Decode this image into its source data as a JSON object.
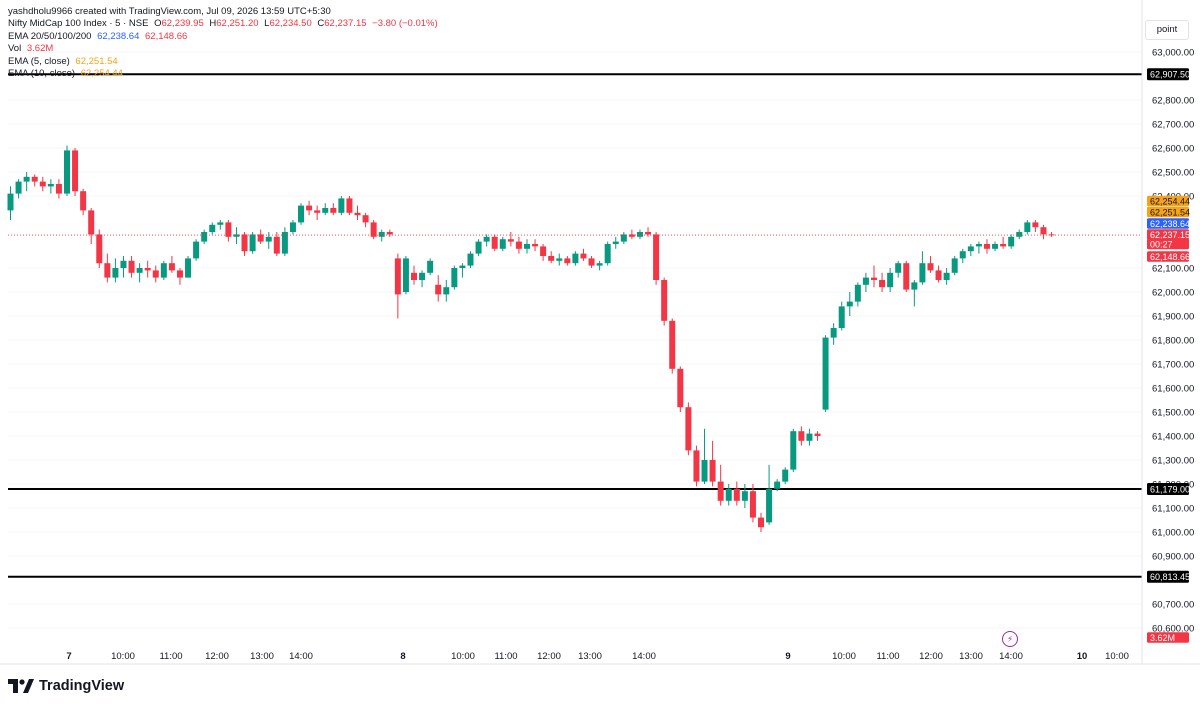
{
  "header": {
    "credit": "yashdholu9966 created with TradingView.com, Jul 09, 2026 13:59 UTC+5:30",
    "symbol": "Nifty MidCap 100 Index · 5 · NSE",
    "ohlc": {
      "o_label": "O",
      "o": "62,239.95",
      "h_label": "H",
      "h": "62,251.20",
      "l_label": "L",
      "l": "62,234.50",
      "c_label": "C",
      "c": "62,237.15",
      "chg": "−3.80 (−0.01%)"
    },
    "ema_multi": {
      "label": "EMA 20/50/100/200",
      "v1": "62,238.64",
      "v2": "62,148.66"
    },
    "vol": {
      "label": "Vol",
      "value": "3.62M"
    },
    "ema5": {
      "label": "EMA (5, close)",
      "value": "62,251.54"
    },
    "ema10": {
      "label": "EMA (10, close)",
      "value": "62,254.44"
    }
  },
  "scale_mode_button": "point",
  "colors": {
    "up": "#089981",
    "down": "#f23645",
    "ema5": "#f7a21b",
    "ema20": "#2962ff",
    "ema50": "#f23645",
    "hline": "#000000"
  },
  "price_axis": {
    "ticks": [
      "63,000.00",
      "62,800.00",
      "62,700.00",
      "62,600.00",
      "62,500.00",
      "62,400.00",
      "62,100.00",
      "62,000.00",
      "61,900.00",
      "61,800.00",
      "61,700.00",
      "61,600.00",
      "61,500.00",
      "61,400.00",
      "61,300.00",
      "61,200.00",
      "61,100.00",
      "61,000.00",
      "60,900.00",
      "60,700.00",
      "60,600.00"
    ],
    "labels": [
      {
        "text": "62,907.50",
        "kind": "hline"
      },
      {
        "text": "62,254.44",
        "kind": "ema10"
      },
      {
        "text": "62,251.54",
        "kind": "ema5"
      },
      {
        "text": "62,238.64",
        "kind": "ema20"
      },
      {
        "text": "62,237.15",
        "kind": "last"
      },
      {
        "text": "00:27",
        "kind": "countdown"
      },
      {
        "text": "62,148.66",
        "kind": "ema50"
      },
      {
        "text": "61,179.00",
        "kind": "hline"
      },
      {
        "text": "60,813.45",
        "kind": "hline"
      },
      {
        "text": "3.62M",
        "kind": "vol"
      }
    ]
  },
  "time_axis": {
    "labels": [
      {
        "t": 0,
        "text": "7",
        "bold": true
      },
      {
        "t": 7.5,
        "text": "10:00"
      },
      {
        "t": 12.7,
        "text": "11:00"
      },
      {
        "t": 18.1,
        "text": "12:00"
      },
      {
        "t": 23.3,
        "text": "13:00"
      },
      {
        "t": 28.3,
        "text": "14:00"
      },
      {
        "t": 41,
        "text": "8",
        "bold": true
      },
      {
        "t": 48.8,
        "text": "10:00"
      },
      {
        "t": 53.8,
        "text": "11:00"
      },
      {
        "t": 59.0,
        "text": "12:00"
      },
      {
        "t": 64.1,
        "text": "13:00"
      },
      {
        "t": 70.6,
        "text": "14:00"
      },
      {
        "t": 89.5,
        "text": "9",
        "bold": true
      },
      {
        "t": 96.1,
        "text": "10:00"
      },
      {
        "t": 101.2,
        "text": "11:00"
      },
      {
        "t": 106.4,
        "text": "12:00"
      },
      {
        "t": 111.5,
        "text": "13:00"
      },
      {
        "t": 116.4,
        "text": "14:00"
      },
      {
        "t": 124.5,
        "text": "10",
        "bold": true
      },
      {
        "t": 129.6,
        "text": "10:00"
      }
    ]
  },
  "chart_data": {
    "type": "candlestick",
    "symbol": "Nifty MidCap 100 Index",
    "interval": "5",
    "ylim": [
      60550,
      63100
    ],
    "horizontal_lines": [
      62907.5,
      61179.0,
      60813.45
    ],
    "last_price": 62237.15,
    "candles": [
      [
        62340,
        62440,
        62300,
        62410
      ],
      [
        62410,
        62470,
        62390,
        62460
      ],
      [
        62460,
        62500,
        62420,
        62480
      ],
      [
        62480,
        62490,
        62440,
        62460
      ],
      [
        62460,
        62480,
        62420,
        62440
      ],
      [
        62440,
        62470,
        62410,
        62450
      ],
      [
        62450,
        62470,
        62390,
        62410
      ],
      [
        62410,
        62610,
        62400,
        62590
      ],
      [
        62590,
        62600,
        62400,
        62420
      ],
      [
        62420,
        62430,
        62320,
        62340
      ],
      [
        62340,
        62350,
        62200,
        62240
      ],
      [
        62240,
        62260,
        62100,
        62120
      ],
      [
        62120,
        62160,
        62040,
        62060
      ],
      [
        62060,
        62140,
        62040,
        62100
      ],
      [
        62100,
        62150,
        62060,
        62130
      ],
      [
        62130,
        62150,
        62060,
        62080
      ],
      [
        62080,
        62120,
        62040,
        62100
      ],
      [
        62100,
        62130,
        62060,
        62090
      ],
      [
        62090,
        62110,
        62040,
        62060
      ],
      [
        62060,
        62130,
        62050,
        62120
      ],
      [
        62120,
        62150,
        62080,
        62090
      ],
      [
        62090,
        62100,
        62030,
        62060
      ],
      [
        62060,
        62150,
        62060,
        62140
      ],
      [
        62140,
        62220,
        62130,
        62210
      ],
      [
        62210,
        62260,
        62200,
        62250
      ],
      [
        62250,
        62290,
        62240,
        62280
      ],
      [
        62280,
        62300,
        62260,
        62290
      ],
      [
        62290,
        62300,
        62210,
        62230
      ],
      [
        62230,
        62270,
        62200,
        62240
      ],
      [
        62240,
        62250,
        62150,
        62170
      ],
      [
        62170,
        62250,
        62160,
        62240
      ],
      [
        62240,
        62260,
        62200,
        62210
      ],
      [
        62210,
        62250,
        62180,
        62230
      ],
      [
        62230,
        62250,
        62150,
        62160
      ],
      [
        62160,
        62270,
        62150,
        62250
      ],
      [
        62250,
        62300,
        62240,
        62290
      ],
      [
        62290,
        62370,
        62280,
        62360
      ],
      [
        62360,
        62380,
        62320,
        62340
      ],
      [
        62340,
        62360,
        62300,
        62330
      ],
      [
        62330,
        62370,
        62320,
        62350
      ],
      [
        62350,
        62370,
        62320,
        62330
      ],
      [
        62330,
        62400,
        62320,
        62390
      ],
      [
        62390,
        62400,
        62320,
        62330
      ],
      [
        62330,
        62360,
        62300,
        62320
      ],
      [
        62320,
        62330,
        62270,
        62290
      ],
      [
        62290,
        62300,
        62220,
        62230
      ],
      [
        62230,
        62260,
        62210,
        62250
      ],
      [
        62250,
        62260,
        62230,
        62240
      ],
      [
        62140,
        62160,
        61890,
        61990
      ],
      [
        62000,
        62150,
        61990,
        62140
      ],
      [
        62080,
        62110,
        62030,
        62050
      ],
      [
        62050,
        62090,
        62020,
        62080
      ],
      [
        62080,
        62140,
        62070,
        62130
      ],
      [
        62030,
        62070,
        61960,
        61990
      ],
      [
        61990,
        62050,
        61960,
        62020
      ],
      [
        62020,
        62110,
        62010,
        62100
      ],
      [
        62100,
        62120,
        62060,
        62110
      ],
      [
        62110,
        62170,
        62100,
        62160
      ],
      [
        62160,
        62220,
        62150,
        62210
      ],
      [
        62210,
        62240,
        62190,
        62230
      ],
      [
        62230,
        62240,
        62170,
        62180
      ],
      [
        62180,
        62230,
        62170,
        62220
      ],
      [
        62220,
        62250,
        62190,
        62210
      ],
      [
        62210,
        62230,
        62160,
        62180
      ],
      [
        62180,
        62220,
        62160,
        62200
      ],
      [
        62200,
        62220,
        62170,
        62190
      ],
      [
        62190,
        62200,
        62130,
        62150
      ],
      [
        62150,
        62170,
        62120,
        62130
      ],
      [
        62130,
        62160,
        62110,
        62140
      ],
      [
        62140,
        62150,
        62110,
        62120
      ],
      [
        62120,
        62170,
        62110,
        62160
      ],
      [
        62160,
        62180,
        62130,
        62140
      ],
      [
        62140,
        62150,
        62100,
        62110
      ],
      [
        62110,
        62130,
        62090,
        62120
      ],
      [
        62120,
        62210,
        62110,
        62200
      ],
      [
        62200,
        62230,
        62180,
        62210
      ],
      [
        62210,
        62250,
        62200,
        62240
      ],
      [
        62240,
        62260,
        62220,
        62230
      ],
      [
        62230,
        62260,
        62220,
        62250
      ],
      [
        62250,
        62270,
        62230,
        62240
      ],
      [
        62240,
        62250,
        62030,
        62050
      ],
      [
        62050,
        62060,
        61860,
        61880
      ],
      [
        61880,
        61890,
        61660,
        61680
      ],
      [
        61680,
        61690,
        61500,
        61520
      ],
      [
        61520,
        61540,
        61320,
        61340
      ],
      [
        61340,
        61360,
        61190,
        61210
      ],
      [
        61210,
        61430,
        61200,
        61300
      ],
      [
        61300,
        61380,
        61190,
        61210
      ],
      [
        61210,
        61280,
        61110,
        61130
      ],
      [
        61130,
        61200,
        61110,
        61180
      ],
      [
        61180,
        61210,
        61110,
        61130
      ],
      [
        61130,
        61200,
        61100,
        61170
      ],
      [
        61170,
        61200,
        61040,
        61060
      ],
      [
        61060,
        61080,
        61000,
        61020
      ],
      [
        61040,
        61280,
        61030,
        61180
      ],
      [
        61180,
        61220,
        61170,
        61210
      ],
      [
        61210,
        61270,
        61200,
        61260
      ],
      [
        61260,
        61430,
        61250,
        61420
      ],
      [
        61420,
        61440,
        61360,
        61380
      ],
      [
        61380,
        61430,
        61360,
        61410
      ],
      [
        61410,
        61420,
        61380,
        61400
      ],
      [
        61510,
        61820,
        61500,
        61810
      ],
      [
        61810,
        61870,
        61780,
        61850
      ],
      [
        61850,
        61960,
        61840,
        61940
      ],
      [
        61940,
        62000,
        61900,
        61960
      ],
      [
        61960,
        62040,
        61940,
        62030
      ],
      [
        62030,
        62080,
        62000,
        62060
      ],
      [
        62060,
        62110,
        62020,
        62050
      ],
      [
        62050,
        62080,
        62000,
        62020
      ],
      [
        62020,
        62100,
        62000,
        62080
      ],
      [
        62080,
        62130,
        62060,
        62120
      ],
      [
        62120,
        62130,
        62000,
        62010
      ],
      [
        62010,
        62050,
        61940,
        62040
      ],
      [
        62040,
        62170,
        62030,
        62120
      ],
      [
        62120,
        62150,
        62080,
        62090
      ],
      [
        62090,
        62110,
        62040,
        62050
      ],
      [
        62050,
        62100,
        62030,
        62080
      ],
      [
        62080,
        62150,
        62070,
        62140
      ],
      [
        62140,
        62180,
        62120,
        62170
      ],
      [
        62170,
        62200,
        62150,
        62190
      ],
      [
        62190,
        62210,
        62160,
        62200
      ],
      [
        62200,
        62220,
        62160,
        62180
      ],
      [
        62180,
        62210,
        62170,
        62200
      ],
      [
        62200,
        62230,
        62180,
        62190
      ],
      [
        62190,
        62240,
        62180,
        62230
      ],
      [
        62230,
        62260,
        62220,
        62250
      ],
      [
        62250,
        62300,
        62240,
        62290
      ],
      [
        62290,
        62300,
        62250,
        62270
      ],
      [
        62270,
        62280,
        62220,
        62240
      ],
      [
        62240,
        62250,
        62230,
        62237
      ]
    ],
    "ema": [
      {
        "name": "EMA (5, close)",
        "color": "#f7a21b",
        "last": 62251.54
      },
      {
        "name": "EMA 20/50/100/200",
        "color": "#2962ff",
        "last": 62238.64
      },
      {
        "name": "EMA 20/50/100/200",
        "color": "#f23645",
        "last": 62148.66
      }
    ]
  }
}
